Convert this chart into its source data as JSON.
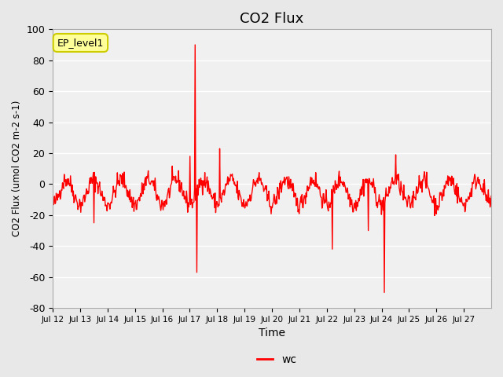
{
  "title": "CO2 Flux",
  "xlabel": "Time",
  "ylabel": "CO2 Flux (umol CO2 m-2 s-1)",
  "ylim": [
    -80,
    100
  ],
  "line_color": "#FF0000",
  "line_width": 1.0,
  "bg_color": "#E8E8E8",
  "plot_bg_color": "#F0F0F0",
  "legend_label": "wc",
  "annotation_label": "EP_level1",
  "annotation_bbox_color": "#FFFF99",
  "annotation_bbox_edge": "#CCCC00",
  "yticks": [
    -80,
    -60,
    -40,
    -20,
    0,
    20,
    40,
    60,
    80,
    100
  ],
  "xtick_labels": [
    "Jul 12",
    "Jul 13",
    "Jul 14",
    "Jul 15",
    "Jul 16",
    "Jul 17",
    "Jul 18",
    "Jul 19",
    "Jul 20",
    "Jul 21",
    "Jul 22",
    "Jul 23",
    "Jul 24",
    "Jul 25",
    "Jul 26",
    "Jul 27"
  ],
  "grid_color": "#FFFFFF",
  "title_fontsize": 13
}
